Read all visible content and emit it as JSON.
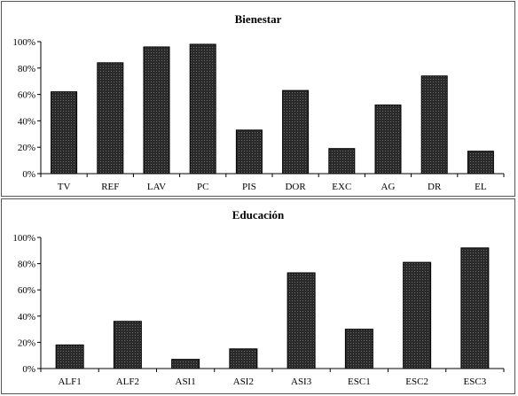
{
  "chart_data": [
    {
      "type": "bar",
      "title": "Bienestar",
      "categories": [
        "TV",
        "REF",
        "LAV",
        "PC",
        "PIS",
        "DOR",
        "EXC",
        "AG",
        "DR",
        "EL"
      ],
      "values": [
        62,
        84,
        96,
        98,
        33,
        63,
        19,
        52,
        74,
        17
      ],
      "ylim": [
        0,
        100
      ],
      "yticks": [
        "0%",
        "20%",
        "40%",
        "60%",
        "80%",
        "100%"
      ],
      "grid": false,
      "bar_color": "#2a2a2a"
    },
    {
      "type": "bar",
      "title": "Educación",
      "categories": [
        "ALF1",
        "ALF2",
        "ASI1",
        "ASI2",
        "ASI3",
        "ESC1",
        "ESC2",
        "ESC3"
      ],
      "values": [
        18,
        36,
        7,
        15,
        73,
        30,
        81,
        92
      ],
      "ylim": [
        0,
        100
      ],
      "yticks": [
        "0%",
        "20%",
        "40%",
        "60%",
        "80%",
        "100%"
      ],
      "grid": false,
      "bar_color": "#2a2a2a"
    }
  ]
}
